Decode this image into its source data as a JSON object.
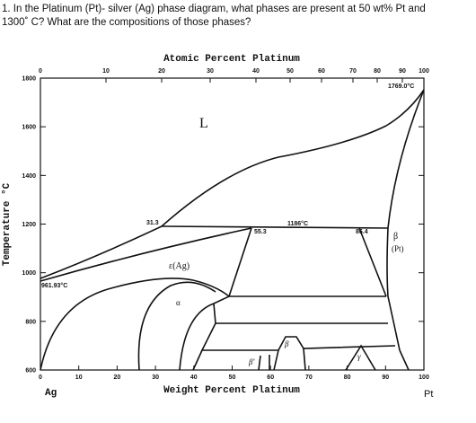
{
  "question": {
    "line1": "1. In the Platinum (Pt)- silver (Ag) phase diagram, what phases are present at 50 wt% Pt and",
    "line2": "1300˚ C? What are the compositions of those phases?"
  },
  "diagram": {
    "top_axis_title": "Atomic Percent Platinum",
    "bottom_axis_title": "Weight Percent Platinum",
    "left_axis_title": "Temperature °C",
    "left_element": "Ag",
    "right_element": "Pt",
    "top_ticks": [
      "0",
      "10",
      "20",
      "30",
      "40",
      "50",
      "60",
      "70",
      "80",
      "90",
      "100"
    ],
    "bottom_ticks": [
      "0",
      "10",
      "20",
      "30",
      "40",
      "50",
      "60",
      "70",
      "80",
      "90",
      "100"
    ],
    "left_ticks": [
      "1800",
      "1600",
      "1400",
      "1200",
      "1000",
      "800",
      "600"
    ],
    "labels": {
      "liquid": "L",
      "epsilon": "ε(Ag)",
      "alpha": "α",
      "beta": "β",
      "beta_pt": "(Pt)",
      "beta_small": "β",
      "beta_prime": "β'",
      "gamma": "γ"
    },
    "annotations": {
      "pt_melt": "1769.0°C",
      "ag_melt": "961.93°C",
      "peritectic": "1186°C",
      "p1": "31.3",
      "p2": "55.3",
      "p3": "86.4"
    }
  }
}
